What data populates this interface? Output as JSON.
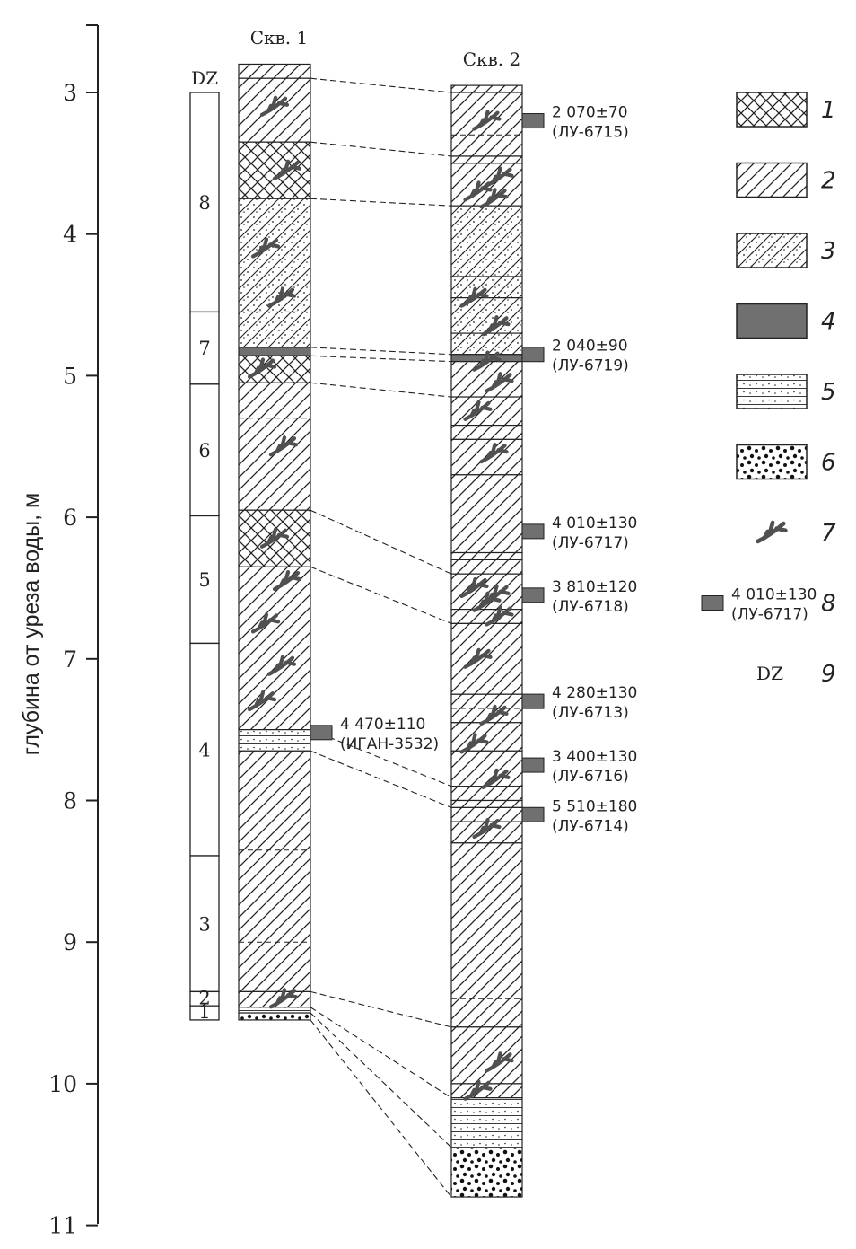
{
  "axis": {
    "label": "глубина от уреза воды, м",
    "ticks": [
      {
        "value": 3,
        "label": "3"
      },
      {
        "value": 4,
        "label": "4"
      },
      {
        "value": 5,
        "label": "5"
      },
      {
        "value": 6,
        "label": "6"
      },
      {
        "value": 7,
        "label": "7"
      },
      {
        "value": 8,
        "label": "8"
      },
      {
        "value": 9,
        "label": "9"
      },
      {
        "value": 10,
        "label": "10"
      },
      {
        "value": 11,
        "label": "11"
      }
    ]
  },
  "dz": {
    "title": "DZ",
    "zones": [
      {
        "label": "8",
        "top": 3.0,
        "bottom": 4.55
      },
      {
        "label": "7",
        "top": 4.55,
        "bottom": 5.06
      },
      {
        "label": "6",
        "top": 5.06,
        "bottom": 5.99
      },
      {
        "label": "5",
        "top": 5.99,
        "bottom": 6.89
      },
      {
        "label": "4",
        "top": 6.89,
        "bottom": 8.39
      },
      {
        "label": "3",
        "top": 8.39,
        "bottom": 9.35
      },
      {
        "label": "2",
        "top": 9.35,
        "bottom": 9.45
      },
      {
        "label": "1",
        "top": 9.45,
        "bottom": 9.55
      }
    ]
  },
  "well1": {
    "title": "Скв. 1",
    "layers": [
      {
        "top": 2.8,
        "bottom": 2.9,
        "type": 2
      },
      {
        "top": 2.9,
        "bottom": 3.35,
        "type": 2
      },
      {
        "top": 3.35,
        "bottom": 3.75,
        "type": 1
      },
      {
        "top": 3.75,
        "bottom": 4.8,
        "type": 3
      },
      {
        "top": 4.8,
        "bottom": 4.86,
        "type": 4
      },
      {
        "top": 4.86,
        "bottom": 5.05,
        "type": 1
      },
      {
        "top": 5.05,
        "bottom": 5.95,
        "type": 2
      },
      {
        "top": 5.95,
        "bottom": 6.35,
        "type": 1
      },
      {
        "top": 6.35,
        "bottom": 7.5,
        "type": 2
      },
      {
        "top": 7.5,
        "bottom": 7.65,
        "type": 5
      },
      {
        "top": 7.65,
        "bottom": 9.35,
        "type": 2
      },
      {
        "top": 9.35,
        "bottom": 9.46,
        "type": 2
      },
      {
        "top": 9.46,
        "bottom": 9.5,
        "type": 5
      },
      {
        "top": 9.5,
        "bottom": 9.55,
        "type": 6
      }
    ],
    "roots": [
      3.1,
      3.55,
      4.1,
      4.45,
      4.95,
      5.5,
      6.15,
      6.45,
      6.75,
      7.05,
      7.3,
      9.4
    ],
    "dashes": [
      4.55,
      5.3,
      8.35,
      9.0
    ],
    "dates": [
      {
        "depth": 7.52,
        "value": "4 470±110",
        "lab": "(ИГАН-3532)"
      }
    ]
  },
  "well2": {
    "title": "Скв. 2",
    "layers": [
      {
        "top": 2.95,
        "bottom": 3.0,
        "type": 2
      },
      {
        "top": 3.0,
        "bottom": 3.45,
        "type": 2
      },
      {
        "top": 3.45,
        "bottom": 3.5,
        "type": 2
      },
      {
        "top": 3.5,
        "bottom": 3.8,
        "type": 2
      },
      {
        "top": 3.8,
        "bottom": 4.3,
        "type": 3
      },
      {
        "top": 4.3,
        "bottom": 4.45,
        "type": 3
      },
      {
        "top": 4.45,
        "bottom": 4.7,
        "type": 3
      },
      {
        "top": 4.7,
        "bottom": 4.85,
        "type": 3
      },
      {
        "top": 4.85,
        "bottom": 4.9,
        "type": 4
      },
      {
        "top": 4.9,
        "bottom": 5.15,
        "type": 2
      },
      {
        "top": 5.15,
        "bottom": 5.35,
        "type": 2
      },
      {
        "top": 5.35,
        "bottom": 5.45,
        "type": 2
      },
      {
        "top": 5.45,
        "bottom": 5.7,
        "type": 2
      },
      {
        "top": 5.7,
        "bottom": 6.25,
        "type": 2
      },
      {
        "top": 6.25,
        "bottom": 6.3,
        "type": 2
      },
      {
        "top": 6.3,
        "bottom": 6.4,
        "type": 2
      },
      {
        "top": 6.4,
        "bottom": 6.65,
        "type": 2
      },
      {
        "top": 6.65,
        "bottom": 6.75,
        "type": 2
      },
      {
        "top": 6.75,
        "bottom": 7.25,
        "type": 2
      },
      {
        "top": 7.25,
        "bottom": 7.45,
        "type": 2
      },
      {
        "top": 7.45,
        "bottom": 7.65,
        "type": 2
      },
      {
        "top": 7.65,
        "bottom": 7.9,
        "type": 2
      },
      {
        "top": 7.9,
        "bottom": 8.0,
        "type": 2
      },
      {
        "top": 8.0,
        "bottom": 8.05,
        "type": 2
      },
      {
        "top": 8.05,
        "bottom": 8.15,
        "type": 2
      },
      {
        "top": 8.15,
        "bottom": 8.3,
        "type": 2
      },
      {
        "top": 8.3,
        "bottom": 9.6,
        "type": 2
      },
      {
        "top": 9.6,
        "bottom": 10.0,
        "type": 2
      },
      {
        "top": 10.0,
        "bottom": 10.1,
        "type": 2
      },
      {
        "top": 10.1,
        "bottom": 10.45,
        "type": 5
      },
      {
        "top": 10.45,
        "bottom": 10.8,
        "type": 6
      }
    ],
    "roots": [
      3.2,
      3.6,
      3.7,
      3.75,
      4.45,
      4.65,
      4.9,
      5.05,
      5.25,
      5.55,
      6.5,
      6.55,
      6.6,
      6.7,
      7.0,
      7.4,
      7.6,
      7.85,
      8.2,
      9.85,
      10.05
    ],
    "dashes": [
      3.3,
      4.9,
      7.35,
      9.4
    ],
    "dates": [
      {
        "depth": 3.2,
        "value": "2 070±70",
        "lab": "(ЛУ-6715)"
      },
      {
        "depth": 4.85,
        "value": "2 040±90",
        "lab": "(ЛУ-6719)"
      },
      {
        "depth": 6.1,
        "value": "4 010±130",
        "lab": "(ЛУ-6717)"
      },
      {
        "depth": 6.55,
        "value": "3 810±120",
        "lab": "(ЛУ-6718)"
      },
      {
        "depth": 7.3,
        "value": "4 280±130",
        "lab": "(ЛУ-6713)"
      },
      {
        "depth": 7.75,
        "value": "3 400±130",
        "lab": "(ЛУ-6716)"
      },
      {
        "depth": 8.1,
        "value": "5 510±180",
        "lab": "(ЛУ-6714)"
      }
    ]
  },
  "correlations": [
    {
      "w1": 2.9,
      "w2": 3.0
    },
    {
      "w1": 3.35,
      "w2": 3.45
    },
    {
      "w1": 3.75,
      "w2": 3.8
    },
    {
      "w1": 4.8,
      "w2": 4.85
    },
    {
      "w1": 4.86,
      "w2": 4.9
    },
    {
      "w1": 5.05,
      "w2": 5.15
    },
    {
      "w1": 5.95,
      "w2": 6.4
    },
    {
      "w1": 6.35,
      "w2": 6.75
    },
    {
      "w1": 7.5,
      "w2": 7.9
    },
    {
      "w1": 7.65,
      "w2": 8.05
    },
    {
      "w1": 9.35,
      "w2": 9.6
    },
    {
      "w1": 9.46,
      "w2": 10.1
    },
    {
      "w1": 9.5,
      "w2": 10.45
    },
    {
      "w1": 9.55,
      "w2": 10.8
    }
  ],
  "legend": [
    {
      "num": "1",
      "kind": "swatch",
      "type": 1
    },
    {
      "num": "2",
      "kind": "swatch",
      "type": 2
    },
    {
      "num": "3",
      "kind": "swatch",
      "type": 3
    },
    {
      "num": "4",
      "kind": "swatch",
      "type": 4
    },
    {
      "num": "5",
      "kind": "swatch",
      "type": 5
    },
    {
      "num": "6",
      "kind": "swatch",
      "type": 6
    },
    {
      "num": "7",
      "kind": "root"
    },
    {
      "num": "8",
      "kind": "date",
      "value": "4 010±130",
      "lab": "(ЛУ-6717)"
    },
    {
      "num": "9",
      "kind": "text",
      "text": "DZ"
    }
  ],
  "colors": {
    "ink": "#222222",
    "date_box": "#707070",
    "root": "#505050"
  }
}
